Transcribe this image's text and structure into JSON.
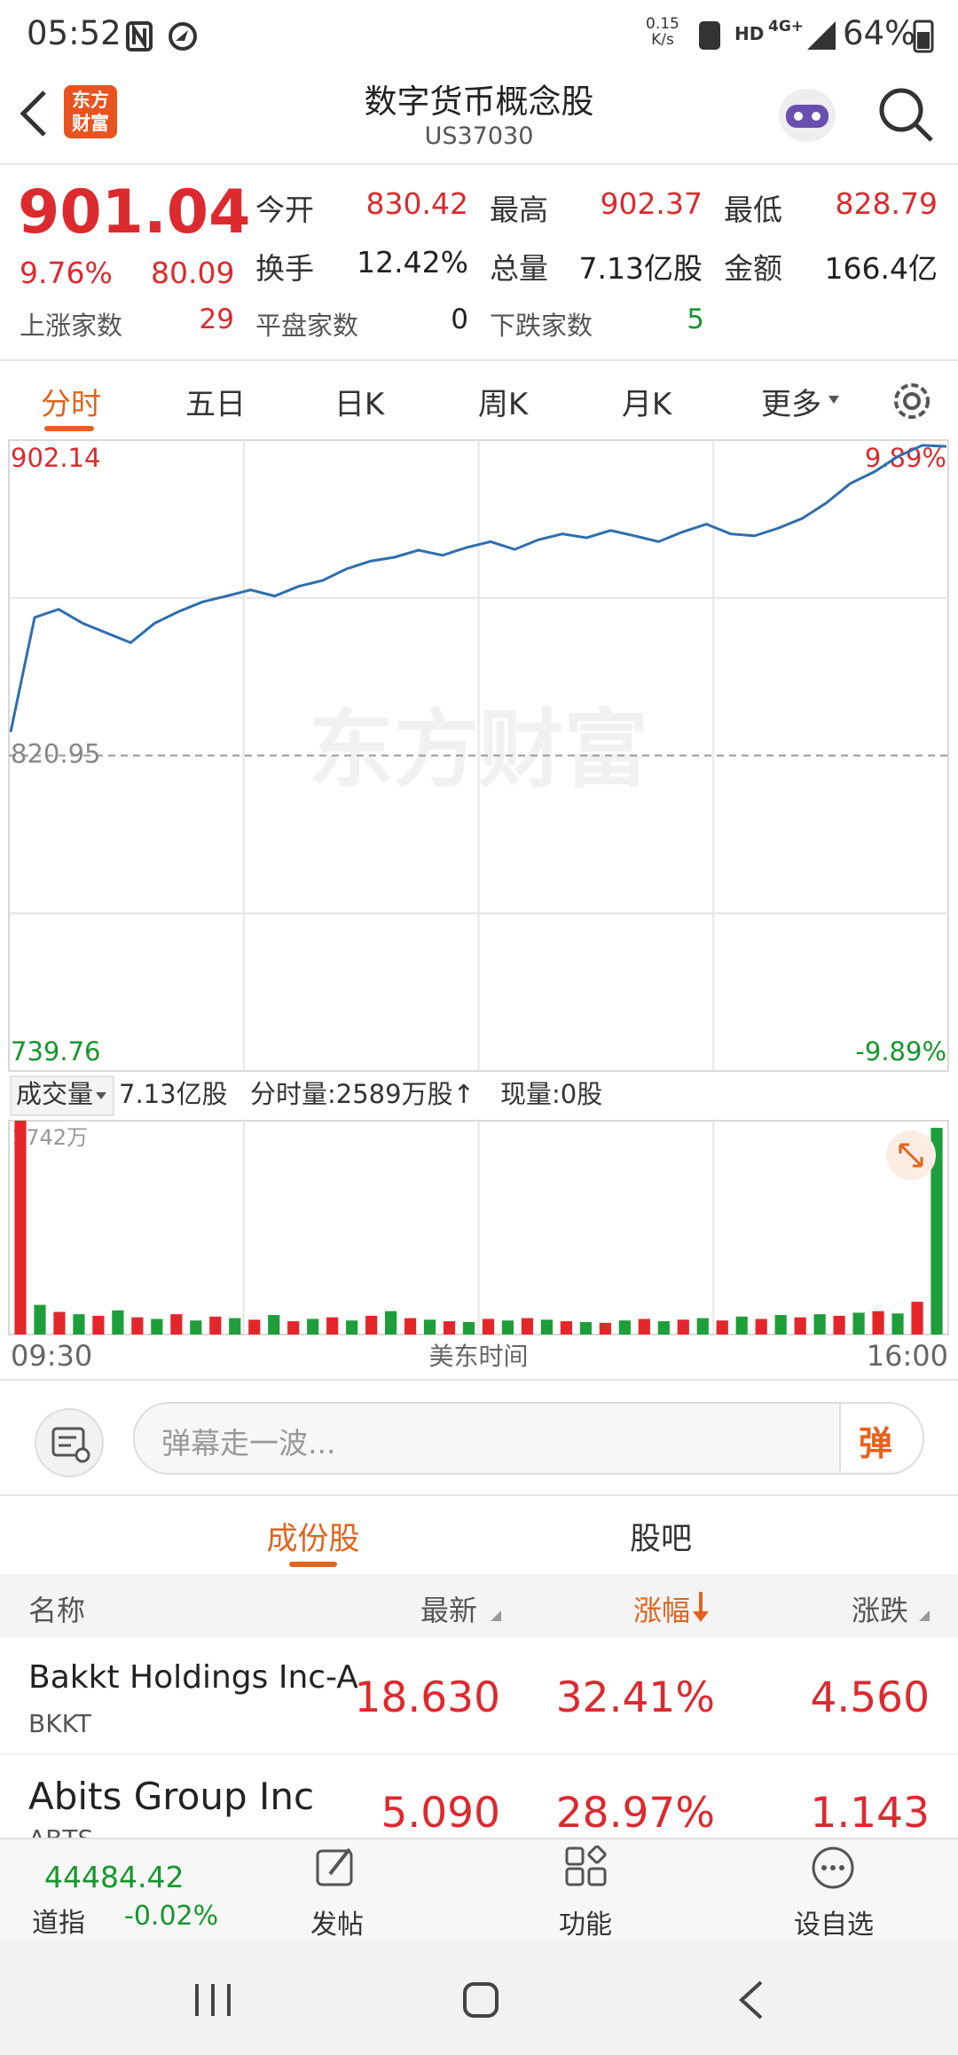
{
  "status_bar": {
    "time": "05:52",
    "net_speed": "0.15",
    "net_unit": "K/s",
    "hd": "HD",
    "network": "4G+",
    "battery": "64%"
  },
  "header": {
    "logo_top": "东方",
    "logo_bottom": "财富",
    "title": "数字货币概念股",
    "code": "US37030"
  },
  "quote": {
    "price": "901.04",
    "change_pct": "9.76%",
    "change": "80.09",
    "fields": [
      {
        "label": "今开",
        "value": "830.42"
      },
      {
        "label": "最高",
        "value": "902.37"
      },
      {
        "label": "最低",
        "value": "828.79"
      },
      {
        "label": "换手",
        "value": "12.42%"
      },
      {
        "label": "总量",
        "value": "7.13亿股"
      },
      {
        "label": "金额",
        "value": "166.4亿"
      }
    ],
    "breadth": [
      {
        "label": "上涨家数",
        "value": "29"
      },
      {
        "label": "平盘家数",
        "value": "0"
      },
      {
        "label": "下跌家数",
        "value": "5"
      }
    ]
  },
  "tabs": [
    "分时",
    "五日",
    "日K",
    "周K",
    "月K",
    "更多"
  ],
  "intraday": {
    "type": "line",
    "watermark": "东方财富",
    "color": "#2f6ead",
    "ylim": [
      739.76,
      902.14
    ],
    "yticks": [
      739.76,
      820.95,
      902.14
    ],
    "y2lim": [
      -9.89,
      9.89
    ],
    "y2ticks": [
      {
        "value": -9.89,
        "label": "-9.89%"
      },
      {
        "value": 9.89,
        "label": "9.89%"
      }
    ],
    "values": [
      827.0,
      856.5,
      858.6,
      855.0,
      852.5,
      850.0,
      855.0,
      858.0,
      860.5,
      862.0,
      863.6,
      862.0,
      864.5,
      866.0,
      869.0,
      871.0,
      872.0,
      873.8,
      872.5,
      874.5,
      876.0,
      874.0,
      876.5,
      878.0,
      877.0,
      878.9,
      877.5,
      876.0,
      878.5,
      880.5,
      878.0,
      877.5,
      879.5,
      882.0,
      886.0,
      891.0,
      894.0,
      898.0,
      900.8,
      900.5
    ]
  },
  "volume_info": {
    "label": "成交量",
    "total": "7.13亿股",
    "minute_volume": "分时量:2589万股↑",
    "current": "现量:0股"
  },
  "volume": {
    "type": "bar",
    "ylim": [
      0,
      2742
    ],
    "yticks": [
      {
        "value": 2742,
        "label": "2742万"
      }
    ],
    "colors": [
      "#e4262b",
      "#1e9e3a"
    ],
    "values": [
      2742,
      380,
      290,
      260,
      240,
      310,
      220,
      200,
      260,
      180,
      230,
      210,
      190,
      250,
      170,
      200,
      220,
      180,
      240,
      300,
      210,
      190,
      170,
      160,
      200,
      180,
      210,
      190,
      170,
      160,
      150,
      180,
      200,
      170,
      190,
      210,
      180,
      230,
      200,
      250,
      220,
      260,
      240,
      280,
      300,
      270,
      420,
      2650
    ]
  },
  "x_labels": [
    "09:30",
    "美东时间",
    "16:00"
  ],
  "comment": {
    "placeholder": "弹幕走一波...",
    "button": "弹"
  },
  "sub_tabs": [
    "成份股",
    "股吧"
  ],
  "table": {
    "headers": [
      "名称",
      "最新",
      "涨幅",
      "涨跌"
    ],
    "rows": [
      {
        "name": "Bakkt Holdings Inc-A",
        "code": "BKKT",
        "price": "18.630",
        "change_pct": "32.41%",
        "change": "4.560"
      },
      {
        "name": "Abits Group Inc",
        "code": "ABTS",
        "price": "5.090",
        "change_pct": "28.97%",
        "change": "1.143"
      }
    ]
  },
  "bottom_bar": {
    "index_value": "44484.42",
    "index_name": "道指",
    "index_change": "-0.02%",
    "actions": [
      "发帖",
      "功能",
      "设自选"
    ]
  }
}
